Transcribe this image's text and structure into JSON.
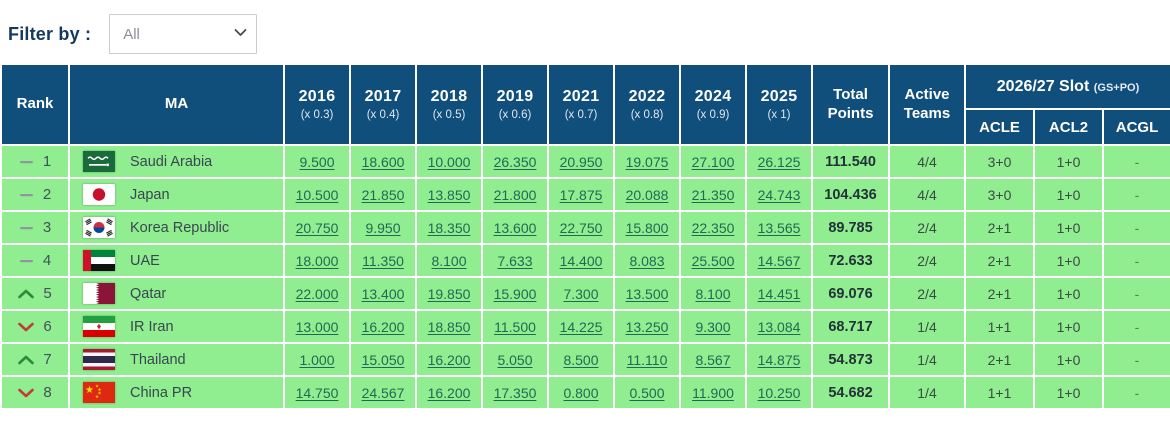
{
  "filter": {
    "label": "Filter by :",
    "value": "All"
  },
  "colors": {
    "header_bg": "#104e7c",
    "row_bg": "#90ee90",
    "link_green": "#1d6b52",
    "rank_up": "#2b8a3e",
    "rank_down": "#c23b3b",
    "rank_steady": "#8f979e"
  },
  "table": {
    "headers": {
      "rank": "Rank",
      "ma": "MA",
      "total_points": "Total Points",
      "active_teams": "Active Teams",
      "slot_group": "2026/27 Slot",
      "slot_suffix": "(GS+PO)",
      "slot_cols": [
        "ACLE",
        "ACL2",
        "ACGL"
      ]
    },
    "year_columns": [
      {
        "year": "2016",
        "multiplier": "(x 0.3)"
      },
      {
        "year": "2017",
        "multiplier": "(x 0.4)"
      },
      {
        "year": "2018",
        "multiplier": "(x 0.5)"
      },
      {
        "year": "2019",
        "multiplier": "(x 0.6)"
      },
      {
        "year": "2021",
        "multiplier": "(x 0.7)"
      },
      {
        "year": "2022",
        "multiplier": "(x 0.8)"
      },
      {
        "year": "2024",
        "multiplier": "(x 0.9)"
      },
      {
        "year": "2025",
        "multiplier": "(x 1)"
      }
    ],
    "rows": [
      {
        "rank": "1",
        "change": "same",
        "change_icon": "rank-steady-icon",
        "country": "Saudi Arabia",
        "flag": "sa",
        "flag_icon": "flag-saudi-arabia-icon",
        "values": [
          "9.500",
          "18.600",
          "10.000",
          "26.350",
          "20.950",
          "19.075",
          "27.100",
          "26.125"
        ],
        "total": "111.540",
        "active": "4/4",
        "acle": "3+0",
        "acl2": "1+0",
        "acgl": "-"
      },
      {
        "rank": "2",
        "change": "same",
        "change_icon": "rank-steady-icon",
        "country": "Japan",
        "flag": "jp",
        "flag_icon": "flag-japan-icon",
        "values": [
          "10.500",
          "21.850",
          "13.850",
          "21.800",
          "17.875",
          "20.088",
          "21.350",
          "24.743"
        ],
        "total": "104.436",
        "active": "4/4",
        "acle": "3+0",
        "acl2": "1+0",
        "acgl": "-"
      },
      {
        "rank": "3",
        "change": "same",
        "change_icon": "rank-steady-icon",
        "country": "Korea Republic",
        "flag": "kr",
        "flag_icon": "flag-korea-republic-icon",
        "values": [
          "20.750",
          "9.950",
          "18.350",
          "13.600",
          "22.750",
          "15.800",
          "22.350",
          "13.565"
        ],
        "total": "89.785",
        "active": "2/4",
        "acle": "2+1",
        "acl2": "1+0",
        "acgl": "-"
      },
      {
        "rank": "4",
        "change": "same",
        "change_icon": "rank-steady-icon",
        "country": "UAE",
        "flag": "ae",
        "flag_icon": "flag-uae-icon",
        "values": [
          "18.000",
          "11.350",
          "8.100",
          "7.633",
          "14.400",
          "8.083",
          "25.500",
          "14.567"
        ],
        "total": "72.633",
        "active": "2/4",
        "acle": "2+1",
        "acl2": "1+0",
        "acgl": "-"
      },
      {
        "rank": "5",
        "change": "up",
        "change_icon": "rank-up-icon",
        "country": "Qatar",
        "flag": "qa",
        "flag_icon": "flag-qatar-icon",
        "values": [
          "22.000",
          "13.400",
          "19.850",
          "15.900",
          "7.300",
          "13.500",
          "8.100",
          "14.451"
        ],
        "total": "69.076",
        "active": "2/4",
        "acle": "2+1",
        "acl2": "1+0",
        "acgl": "-"
      },
      {
        "rank": "6",
        "change": "down",
        "change_icon": "rank-down-icon",
        "country": "IR Iran",
        "flag": "ir",
        "flag_icon": "flag-ir-iran-icon",
        "values": [
          "13.000",
          "16.200",
          "18.850",
          "11.500",
          "14.225",
          "13.250",
          "9.300",
          "13.084"
        ],
        "total": "68.717",
        "active": "1/4",
        "acle": "1+1",
        "acl2": "1+0",
        "acgl": "-"
      },
      {
        "rank": "7",
        "change": "up",
        "change_icon": "rank-up-icon",
        "country": "Thailand",
        "flag": "th",
        "flag_icon": "flag-thailand-icon",
        "values": [
          "1.000",
          "15.050",
          "16.200",
          "5.050",
          "8.500",
          "11.110",
          "8.567",
          "14.875"
        ],
        "total": "54.873",
        "active": "1/4",
        "acle": "2+1",
        "acl2": "1+0",
        "acgl": "-"
      },
      {
        "rank": "8",
        "change": "down",
        "change_icon": "rank-down-icon",
        "country": "China PR",
        "flag": "cn",
        "flag_icon": "flag-china-pr-icon",
        "values": [
          "14.750",
          "24.567",
          "16.200",
          "17.350",
          "0.800",
          "0.500",
          "11.900",
          "10.250"
        ],
        "total": "54.682",
        "active": "1/4",
        "acle": "1+1",
        "acl2": "1+0",
        "acgl": "-"
      }
    ]
  }
}
